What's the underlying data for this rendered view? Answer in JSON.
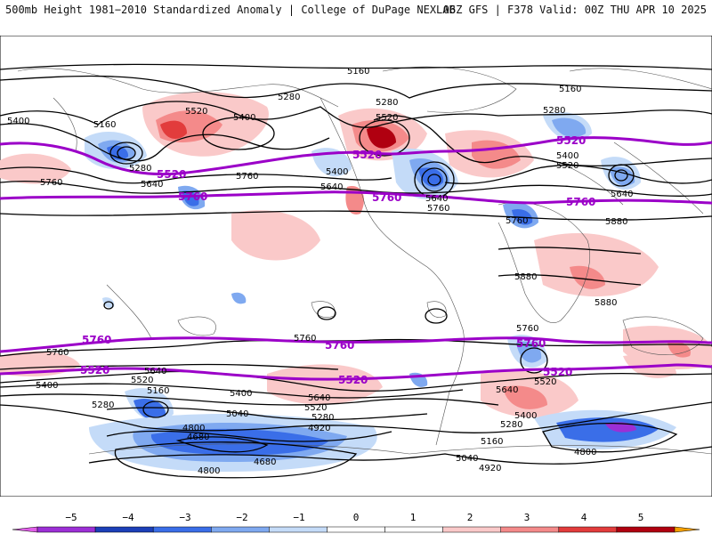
{
  "header": {
    "left": "500mb Height 1981−2010 Standardized Anomaly | College of DuPage NEXLAB",
    "right": "06Z GFS | F378 Valid: 00Z THU APR 10 2025"
  },
  "legend": {
    "ticks": [
      "−5",
      "−4",
      "−3",
      "−2",
      "−1",
      "0",
      "1",
      "2",
      "3",
      "4",
      "5"
    ],
    "colors": [
      "#e05ee8",
      "#9c2fd6",
      "#1c3fb8",
      "#3a6ee8",
      "#7fa9f0",
      "#c4dbf8",
      "#ffffff",
      "#ffffff",
      "#fac9c9",
      "#f48a8a",
      "#e23c3c",
      "#b00010",
      "#f5a000"
    ]
  },
  "map": {
    "height_labels": [
      "5160",
      "5280",
      "5400",
      "5520",
      "5640",
      "5760",
      "5880",
      "4800",
      "4680",
      "4920",
      "5040",
      "5760",
      "5640",
      "5520",
      "5400",
      "5280",
      "5160"
    ],
    "highlight_labels": [
      "5520",
      "5760"
    ]
  }
}
